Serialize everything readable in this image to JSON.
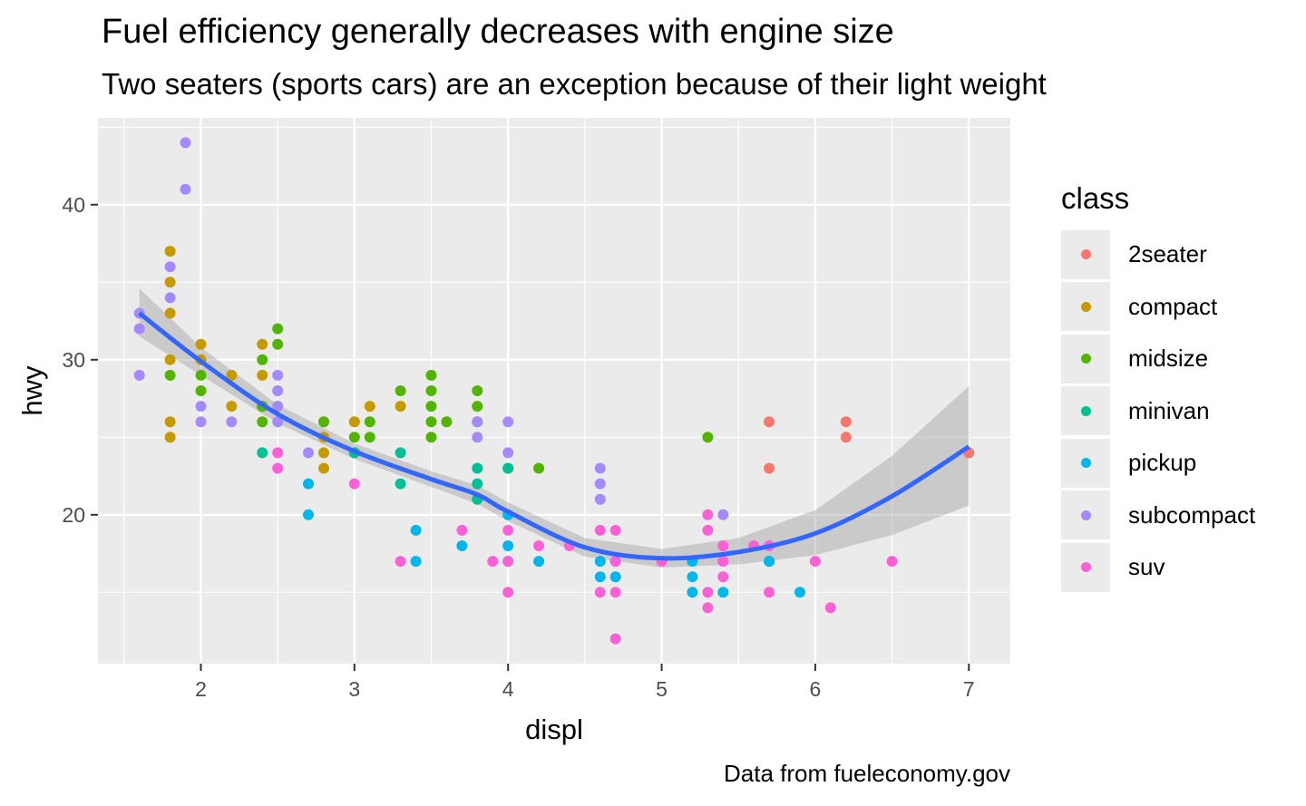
{
  "chart_data": {
    "type": "scatter",
    "title": "Fuel efficiency generally decreases with engine size",
    "subtitle": "Two seaters (sports cars) are an exception because of their light weight",
    "caption": "Data from fueleconomy.gov",
    "xlabel": "displ",
    "ylabel": "hwy",
    "xlim": [
      1.33,
      7.27
    ],
    "ylim": [
      10.4,
      45.6
    ],
    "xticks": [
      2,
      3,
      4,
      5,
      6,
      7
    ],
    "yticks": [
      20,
      30,
      40
    ],
    "grid": true,
    "legend": {
      "title": "class",
      "position": "right"
    },
    "series": [
      {
        "name": "2seater",
        "color": "#F8766D",
        "points": [
          [
            5.7,
            26
          ],
          [
            5.7,
            23
          ],
          [
            6.2,
            26
          ],
          [
            6.2,
            25
          ],
          [
            7.0,
            24
          ]
        ]
      },
      {
        "name": "compact",
        "color": "#C49A00",
        "points": [
          [
            1.8,
            37
          ],
          [
            1.8,
            35
          ],
          [
            1.8,
            33
          ],
          [
            1.8,
            30
          ],
          [
            1.8,
            26
          ],
          [
            1.8,
            25
          ],
          [
            2.0,
            31
          ],
          [
            2.0,
            30
          ],
          [
            2.2,
            29
          ],
          [
            2.2,
            27
          ],
          [
            2.4,
            31
          ],
          [
            2.4,
            29
          ],
          [
            2.4,
            27
          ],
          [
            2.5,
            27
          ],
          [
            2.8,
            26
          ],
          [
            2.8,
            25
          ],
          [
            2.8,
            24
          ],
          [
            2.8,
            23
          ],
          [
            3.0,
            26
          ],
          [
            3.1,
            27
          ],
          [
            3.3,
            27
          ]
        ]
      },
      {
        "name": "midsize",
        "color": "#53B400",
        "points": [
          [
            1.8,
            29
          ],
          [
            2.0,
            29
          ],
          [
            2.0,
            28
          ],
          [
            2.4,
            30
          ],
          [
            2.4,
            27
          ],
          [
            2.4,
            26
          ],
          [
            2.5,
            32
          ],
          [
            2.5,
            31
          ],
          [
            2.8,
            26
          ],
          [
            3.0,
            25
          ],
          [
            3.1,
            26
          ],
          [
            3.1,
            25
          ],
          [
            3.3,
            28
          ],
          [
            3.5,
            29
          ],
          [
            3.5,
            28
          ],
          [
            3.5,
            27
          ],
          [
            3.5,
            26
          ],
          [
            3.5,
            25
          ],
          [
            3.6,
            26
          ],
          [
            3.8,
            28
          ],
          [
            3.8,
            27
          ],
          [
            3.8,
            26
          ],
          [
            4.0,
            23
          ],
          [
            4.2,
            23
          ],
          [
            5.3,
            25
          ]
        ]
      },
      {
        "name": "minivan",
        "color": "#00C094",
        "points": [
          [
            2.4,
            24
          ],
          [
            3.0,
            24
          ],
          [
            3.3,
            24
          ],
          [
            3.3,
            22
          ],
          [
            3.8,
            23
          ],
          [
            3.8,
            22
          ],
          [
            3.8,
            21
          ],
          [
            4.0,
            23
          ],
          [
            5.7,
            17
          ]
        ]
      },
      {
        "name": "pickup",
        "color": "#00B6EB",
        "points": [
          [
            2.7,
            22
          ],
          [
            2.7,
            20
          ],
          [
            3.4,
            19
          ],
          [
            3.4,
            17
          ],
          [
            3.7,
            18
          ],
          [
            4.0,
            20
          ],
          [
            4.0,
            18
          ],
          [
            4.0,
            17
          ],
          [
            4.2,
            17
          ],
          [
            4.6,
            17
          ],
          [
            4.6,
            16
          ],
          [
            4.7,
            17
          ],
          [
            4.7,
            16
          ],
          [
            5.2,
            17
          ],
          [
            5.2,
            16
          ],
          [
            5.2,
            15
          ],
          [
            5.4,
            17
          ],
          [
            5.4,
            15
          ],
          [
            5.7,
            17
          ],
          [
            5.9,
            15
          ]
        ]
      },
      {
        "name": "subcompact",
        "color": "#A58AFF",
        "points": [
          [
            1.6,
            33
          ],
          [
            1.6,
            32
          ],
          [
            1.6,
            29
          ],
          [
            1.8,
            36
          ],
          [
            1.8,
            34
          ],
          [
            1.9,
            44
          ],
          [
            1.9,
            41
          ],
          [
            2.0,
            27
          ],
          [
            2.0,
            26
          ],
          [
            2.2,
            26
          ],
          [
            2.5,
            29
          ],
          [
            2.5,
            28
          ],
          [
            2.5,
            27
          ],
          [
            2.5,
            26
          ],
          [
            2.7,
            24
          ],
          [
            3.8,
            26
          ],
          [
            3.8,
            25
          ],
          [
            4.0,
            26
          ],
          [
            4.0,
            24
          ],
          [
            4.6,
            23
          ],
          [
            4.6,
            22
          ],
          [
            4.6,
            21
          ],
          [
            5.4,
            20
          ]
        ]
      },
      {
        "name": "suv",
        "color": "#FB61D7",
        "points": [
          [
            2.5,
            24
          ],
          [
            2.5,
            23
          ],
          [
            3.0,
            22
          ],
          [
            3.3,
            17
          ],
          [
            3.7,
            19
          ],
          [
            3.9,
            17
          ],
          [
            4.0,
            19
          ],
          [
            4.0,
            17
          ],
          [
            4.0,
            15
          ],
          [
            4.2,
            18
          ],
          [
            4.4,
            18
          ],
          [
            4.6,
            19
          ],
          [
            4.6,
            15
          ],
          [
            4.7,
            19
          ],
          [
            4.7,
            17
          ],
          [
            4.7,
            15
          ],
          [
            4.7,
            12
          ],
          [
            5.0,
            17
          ],
          [
            5.3,
            20
          ],
          [
            5.3,
            19
          ],
          [
            5.3,
            15
          ],
          [
            5.3,
            14
          ],
          [
            5.4,
            18
          ],
          [
            5.4,
            17
          ],
          [
            5.4,
            16
          ],
          [
            5.6,
            18
          ],
          [
            5.7,
            18
          ],
          [
            5.7,
            15
          ],
          [
            6.0,
            17
          ],
          [
            6.1,
            14
          ],
          [
            6.5,
            17
          ]
        ]
      }
    ],
    "smooth": {
      "color": "#3366FF",
      "band_color": "#999999",
      "x": [
        1.6,
        2.0,
        2.5,
        3.0,
        3.5,
        3.8,
        4.0,
        4.5,
        5.0,
        5.5,
        6.0,
        6.5,
        7.0
      ],
      "y": [
        33.0,
        29.9,
        26.5,
        24.1,
        22.3,
        21.3,
        20.2,
        17.9,
        17.2,
        17.6,
        18.8,
        21.2,
        24.4
      ],
      "upper": [
        34.6,
        30.8,
        27.1,
        24.6,
        22.8,
        21.9,
        20.8,
        18.5,
        17.8,
        18.5,
        20.3,
        23.8,
        28.3
      ],
      "lower": [
        31.5,
        29.0,
        25.9,
        23.6,
        21.8,
        20.7,
        19.6,
        17.3,
        16.6,
        16.8,
        17.4,
        18.7,
        20.6
      ]
    }
  }
}
